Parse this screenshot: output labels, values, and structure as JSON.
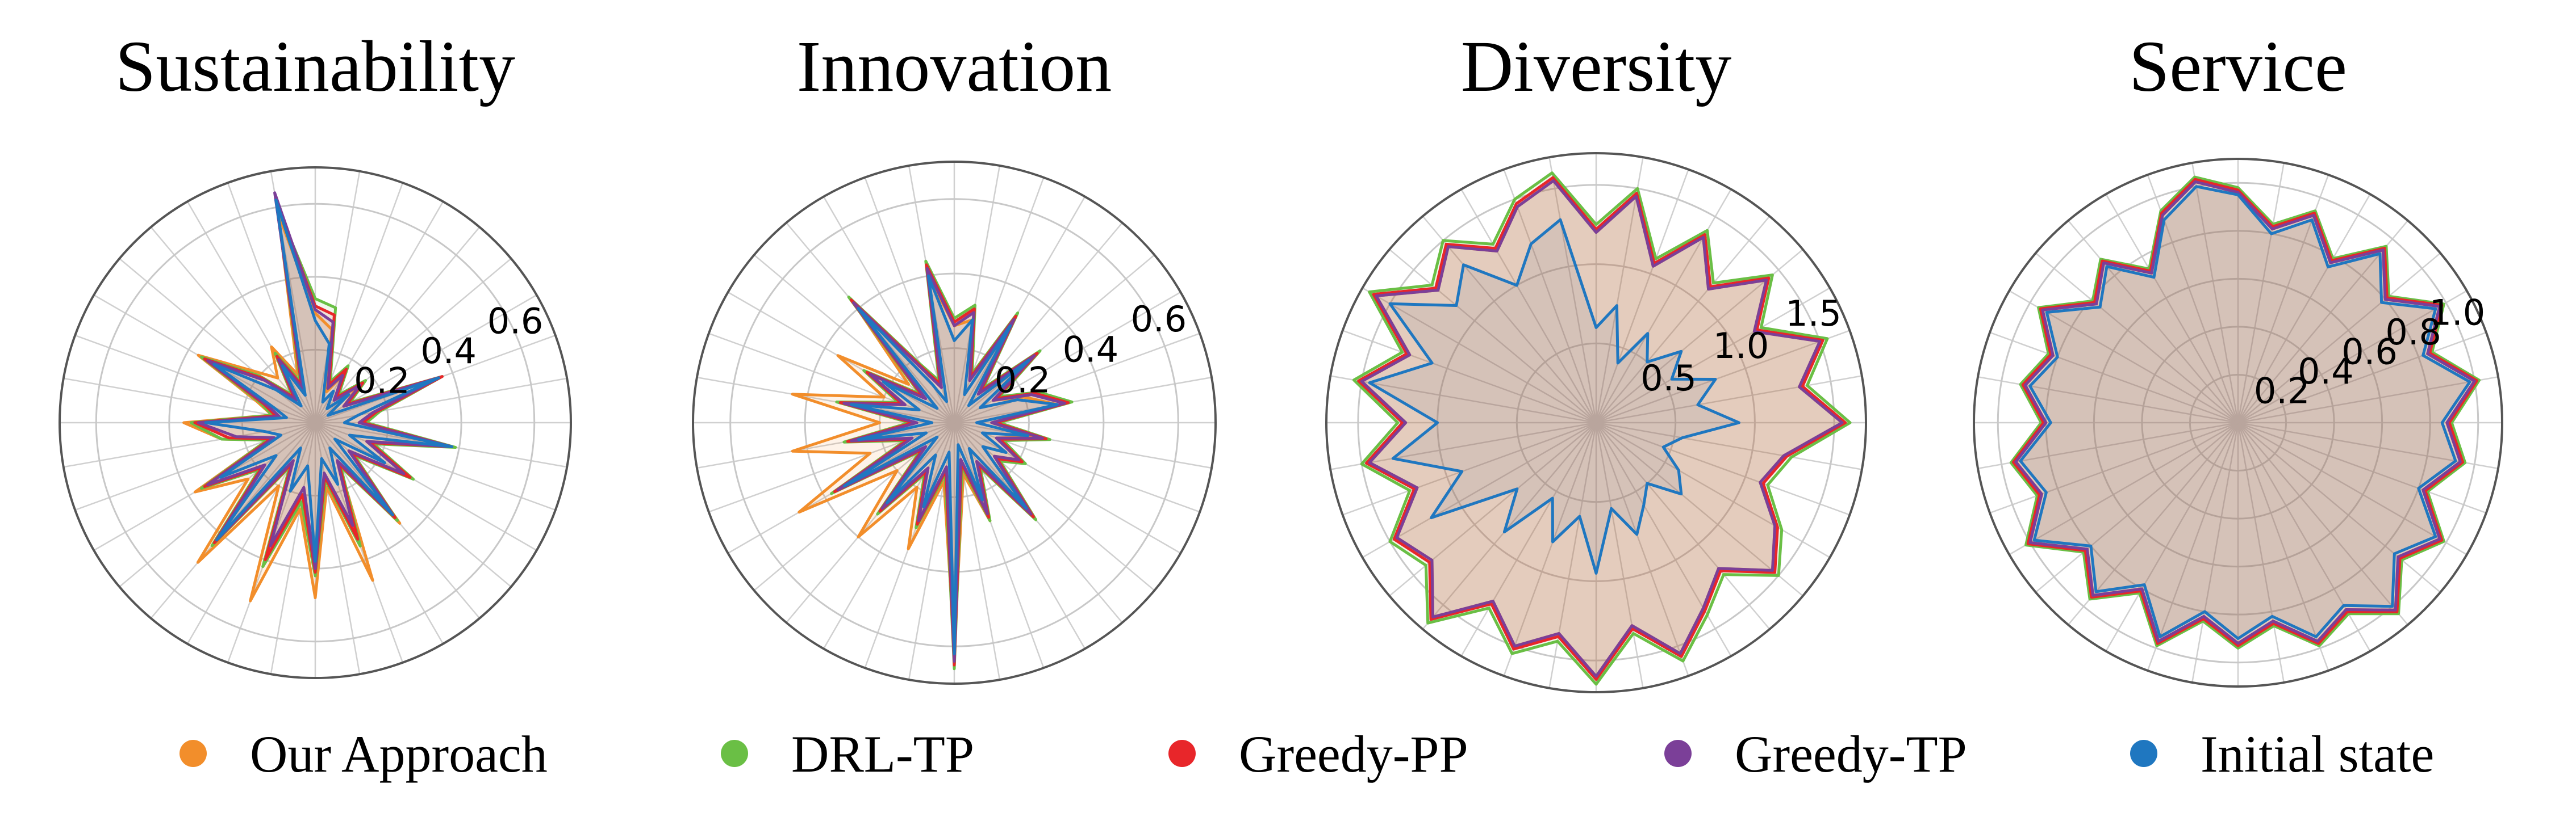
{
  "legend": [
    {
      "label": "Our Approach",
      "color": "#f28e2b"
    },
    {
      "label": "DRL-TP",
      "color": "#6abf45"
    },
    {
      "label": "Greedy-PP",
      "color": "#e8262a"
    },
    {
      "label": "Greedy-TP",
      "color": "#7b3f98"
    },
    {
      "label": "Initial state",
      "color": "#1f77c0"
    }
  ],
  "chart_data": [
    {
      "type": "radar",
      "title": "Sustainability",
      "rmax": 0.7,
      "ticks": [
        0.2,
        0.4,
        0.6
      ],
      "n_axes": 36,
      "series": [
        {
          "name": "Initial state",
          "values": [
            0.28,
            0.22,
            0.06,
            0.1,
            0.05,
            0.12,
            0.04,
            0.36,
            0.12,
            0.08,
            0.38,
            0.1,
            0.22,
            0.07,
            0.33,
            0.08,
            0.18,
            0.1,
            0.38,
            0.12,
            0.2,
            0.08,
            0.42,
            0.14,
            0.3,
            0.1,
            0.14,
            0.3,
            0.08,
            0.12,
            0.32,
            0.14,
            0.06,
            0.18,
            0.08,
            0.62
          ]
        },
        {
          "name": "Greedy-TP",
          "values": [
            0.31,
            0.28,
            0.1,
            0.15,
            0.08,
            0.16,
            0.09,
            0.36,
            0.16,
            0.12,
            0.38,
            0.15,
            0.28,
            0.12,
            0.33,
            0.12,
            0.3,
            0.14,
            0.4,
            0.18,
            0.36,
            0.12,
            0.42,
            0.18,
            0.34,
            0.12,
            0.22,
            0.32,
            0.1,
            0.14,
            0.34,
            0.18,
            0.08,
            0.2,
            0.1,
            0.64
          ]
        },
        {
          "name": "Greedy-PP",
          "values": [
            0.32,
            0.3,
            0.11,
            0.17,
            0.09,
            0.17,
            0.1,
            0.37,
            0.17,
            0.13,
            0.38,
            0.16,
            0.3,
            0.13,
            0.34,
            0.13,
            0.34,
            0.15,
            0.41,
            0.2,
            0.4,
            0.13,
            0.43,
            0.19,
            0.35,
            0.13,
            0.24,
            0.33,
            0.11,
            0.15,
            0.35,
            0.19,
            0.09,
            0.21,
            0.11,
            0.62
          ]
        },
        {
          "name": "DRL-TP",
          "values": [
            0.34,
            0.32,
            0.12,
            0.18,
            0.1,
            0.18,
            0.11,
            0.37,
            0.18,
            0.14,
            0.39,
            0.17,
            0.31,
            0.14,
            0.35,
            0.14,
            0.36,
            0.16,
            0.42,
            0.22,
            0.42,
            0.14,
            0.44,
            0.2,
            0.36,
            0.14,
            0.26,
            0.34,
            0.12,
            0.16,
            0.36,
            0.2,
            0.1,
            0.22,
            0.12,
            0.6
          ]
        },
        {
          "name": "Our Approach",
          "values": [
            0.3,
            0.26,
            0.09,
            0.15,
            0.08,
            0.15,
            0.09,
            0.35,
            0.17,
            0.13,
            0.37,
            0.15,
            0.3,
            0.12,
            0.36,
            0.13,
            0.46,
            0.18,
            0.48,
            0.24,
            0.52,
            0.2,
            0.5,
            0.24,
            0.38,
            0.14,
            0.26,
            0.36,
            0.12,
            0.17,
            0.37,
            0.22,
            0.16,
            0.24,
            0.14,
            0.58
          ]
        }
      ]
    },
    {
      "type": "radar",
      "title": "Innovation",
      "rmax": 0.7,
      "ticks": [
        0.2,
        0.4,
        0.6
      ],
      "n_axes": 36,
      "series": [
        {
          "name": "Initial state",
          "values": [
            0.22,
            0.28,
            0.08,
            0.3,
            0.06,
            0.26,
            0.08,
            0.18,
            0.28,
            0.06,
            0.2,
            0.08,
            0.16,
            0.1,
            0.3,
            0.08,
            0.22,
            0.06,
            0.62,
            0.08,
            0.24,
            0.1,
            0.28,
            0.06,
            0.34,
            0.08,
            0.26,
            0.06,
            0.28,
            0.1,
            0.22,
            0.06,
            0.4,
            0.12,
            0.06,
            0.4
          ]
        },
        {
          "name": "Greedy-TP",
          "values": [
            0.26,
            0.3,
            0.12,
            0.32,
            0.1,
            0.28,
            0.12,
            0.22,
            0.3,
            0.1,
            0.24,
            0.12,
            0.2,
            0.14,
            0.32,
            0.12,
            0.26,
            0.1,
            0.64,
            0.12,
            0.28,
            0.14,
            0.3,
            0.1,
            0.36,
            0.12,
            0.28,
            0.1,
            0.3,
            0.14,
            0.26,
            0.1,
            0.42,
            0.16,
            0.1,
            0.42
          ]
        },
        {
          "name": "Greedy-PP",
          "values": [
            0.27,
            0.31,
            0.13,
            0.33,
            0.11,
            0.29,
            0.13,
            0.23,
            0.31,
            0.11,
            0.25,
            0.13,
            0.21,
            0.15,
            0.33,
            0.13,
            0.27,
            0.11,
            0.65,
            0.13,
            0.29,
            0.15,
            0.31,
            0.11,
            0.37,
            0.13,
            0.29,
            0.11,
            0.31,
            0.15,
            0.27,
            0.11,
            0.43,
            0.17,
            0.11,
            0.43
          ]
        },
        {
          "name": "DRL-TP",
          "values": [
            0.28,
            0.32,
            0.14,
            0.34,
            0.12,
            0.3,
            0.14,
            0.24,
            0.32,
            0.12,
            0.26,
            0.14,
            0.22,
            0.16,
            0.34,
            0.14,
            0.28,
            0.12,
            0.66,
            0.14,
            0.3,
            0.16,
            0.32,
            0.12,
            0.38,
            0.14,
            0.3,
            0.12,
            0.32,
            0.16,
            0.28,
            0.12,
            0.44,
            0.18,
            0.12,
            0.44
          ]
        },
        {
          "name": "Our Approach",
          "values": [
            0.26,
            0.28,
            0.12,
            0.3,
            0.1,
            0.26,
            0.12,
            0.2,
            0.28,
            0.1,
            0.22,
            0.12,
            0.2,
            0.14,
            0.3,
            0.12,
            0.28,
            0.14,
            0.6,
            0.16,
            0.36,
            0.2,
            0.4,
            0.2,
            0.48,
            0.24,
            0.44,
            0.2,
            0.44,
            0.2,
            0.36,
            0.16,
            0.42,
            0.16,
            0.12,
            0.4
          ]
        }
      ]
    },
    {
      "type": "radar",
      "title": "Diversity",
      "rmax": 1.7,
      "ticks": [
        0.5,
        1.0,
        1.5
      ],
      "n_axes": 36,
      "series": [
        {
          "name": "Initial state",
          "values": [
            0.6,
            0.75,
            0.4,
            0.65,
            0.5,
            0.7,
            0.55,
            0.8,
            0.65,
            0.9,
            0.55,
            0.45,
            0.6,
            0.7,
            0.5,
            0.6,
            0.75,
            0.55,
            0.95,
            0.6,
            0.8,
            0.55,
            0.9,
            0.65,
            1.2,
            0.9,
            1.3,
            1.0,
            1.45,
            1.1,
            1.5,
            1.15,
            1.3,
            1.0,
            1.2,
            1.3
          ]
        },
        {
          "name": "Greedy-TP",
          "values": [
            1.2,
            1.45,
            1.05,
            1.35,
            1.1,
            1.4,
            1.15,
            1.5,
            1.3,
            1.55,
            1.2,
            1.1,
            1.3,
            1.45,
            1.2,
            1.35,
            1.55,
            1.3,
            1.6,
            1.35,
            1.5,
            1.3,
            1.6,
            1.35,
            1.45,
            1.2,
            1.45,
            1.2,
            1.5,
            1.25,
            1.6,
            1.3,
            1.45,
            1.25,
            1.45,
            1.55
          ]
        },
        {
          "name": "Greedy-PP",
          "values": [
            1.22,
            1.47,
            1.07,
            1.37,
            1.12,
            1.42,
            1.17,
            1.52,
            1.32,
            1.57,
            1.22,
            1.12,
            1.32,
            1.47,
            1.22,
            1.37,
            1.57,
            1.32,
            1.62,
            1.37,
            1.52,
            1.32,
            1.62,
            1.37,
            1.47,
            1.22,
            1.47,
            1.22,
            1.52,
            1.27,
            1.62,
            1.32,
            1.47,
            1.27,
            1.47,
            1.57
          ]
        },
        {
          "name": "DRL-TP",
          "values": [
            1.25,
            1.5,
            1.1,
            1.4,
            1.15,
            1.45,
            1.2,
            1.55,
            1.35,
            1.6,
            1.25,
            1.15,
            1.35,
            1.5,
            1.25,
            1.4,
            1.6,
            1.35,
            1.65,
            1.4,
            1.55,
            1.35,
            1.65,
            1.4,
            1.5,
            1.25,
            1.5,
            1.25,
            1.55,
            1.3,
            1.65,
            1.35,
            1.5,
            1.3,
            1.5,
            1.6
          ]
        },
        {
          "name": "Our Approach",
          "values": [
            1.2,
            1.45,
            1.05,
            1.35,
            1.1,
            1.4,
            1.15,
            1.5,
            1.3,
            1.55,
            1.2,
            1.1,
            1.3,
            1.45,
            1.2,
            1.35,
            1.55,
            1.3,
            1.6,
            1.35,
            1.5,
            1.3,
            1.6,
            1.35,
            1.45,
            1.2,
            1.45,
            1.2,
            1.5,
            1.25,
            1.6,
            1.3,
            1.45,
            1.25,
            1.45,
            1.55
          ]
        }
      ]
    },
    {
      "type": "radar",
      "title": "Service",
      "rmax": 1.1,
      "ticks": [
        0.2,
        0.4,
        0.6,
        0.8,
        1.0
      ],
      "n_axes": 36,
      "series": [
        {
          "name": "Initial state",
          "values": [
            0.95,
            0.8,
            0.9,
            0.75,
            0.92,
            0.78,
            0.95,
            0.82,
            0.98,
            0.85,
            0.92,
            0.8,
            0.95,
            0.85,
            1.0,
            0.88,
            0.95,
            0.82,
            0.9,
            0.8,
            0.95,
            0.78,
            0.92,
            0.8,
            0.98,
            0.85,
            0.92,
            0.78,
            0.88,
            0.8,
            0.92,
            0.75,
            0.85,
            0.7,
            0.9,
            1.0
          ]
        },
        {
          "name": "Greedy-TP",
          "values": [
            0.96,
            0.82,
            0.92,
            0.77,
            0.94,
            0.8,
            0.97,
            0.84,
            1.0,
            0.87,
            0.94,
            0.82,
            0.97,
            0.87,
            1.02,
            0.9,
            0.97,
            0.84,
            0.92,
            0.82,
            0.97,
            0.8,
            0.94,
            0.82,
            1.0,
            0.87,
            0.94,
            0.8,
            0.9,
            0.82,
            0.94,
            0.77,
            0.87,
            0.72,
            0.92,
            1.02
          ]
        },
        {
          "name": "Greedy-PP",
          "values": [
            0.97,
            0.83,
            0.93,
            0.78,
            0.95,
            0.81,
            0.98,
            0.85,
            1.01,
            0.88,
            0.95,
            0.83,
            0.98,
            0.88,
            1.03,
            0.91,
            0.98,
            0.85,
            0.93,
            0.83,
            0.98,
            0.81,
            0.95,
            0.83,
            1.01,
            0.88,
            0.95,
            0.81,
            0.91,
            0.83,
            0.95,
            0.78,
            0.88,
            0.73,
            0.93,
            1.03
          ]
        },
        {
          "name": "DRL-TP",
          "values": [
            0.98,
            0.84,
            0.94,
            0.79,
            0.96,
            0.82,
            0.99,
            0.86,
            1.02,
            0.89,
            0.96,
            0.84,
            0.99,
            0.89,
            1.04,
            0.92,
            0.99,
            0.86,
            0.94,
            0.84,
            0.99,
            0.82,
            0.96,
            0.84,
            1.02,
            0.89,
            0.96,
            0.82,
            0.92,
            0.84,
            0.96,
            0.79,
            0.89,
            0.74,
            0.94,
            1.04
          ]
        },
        {
          "name": "Our Approach",
          "values": [
            0.96,
            0.82,
            0.92,
            0.77,
            0.94,
            0.8,
            0.97,
            0.84,
            1.0,
            0.87,
            0.94,
            0.82,
            0.97,
            0.87,
            1.02,
            0.9,
            0.97,
            0.84,
            0.92,
            0.82,
            0.97,
            0.8,
            0.94,
            0.82,
            1.0,
            0.87,
            0.94,
            0.8,
            0.9,
            0.82,
            0.94,
            0.77,
            0.87,
            0.72,
            0.92,
            1.02
          ]
        }
      ]
    }
  ]
}
